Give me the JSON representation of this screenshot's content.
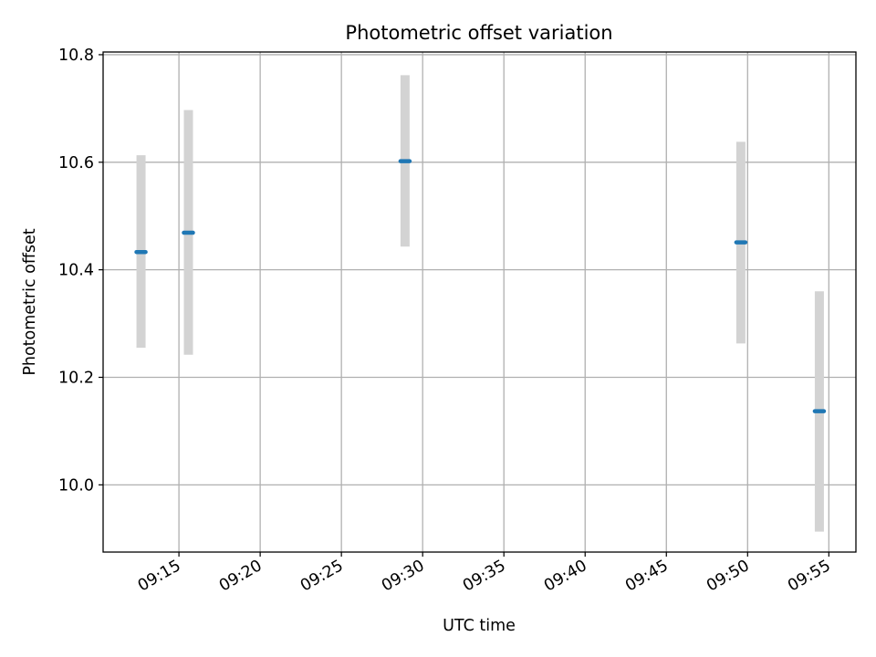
{
  "chart_data": {
    "type": "scatter",
    "title": "Photometric offset variation",
    "xlabel": "UTC time",
    "ylabel": "Photometric offset",
    "x_ticks": [
      "09:15",
      "09:20",
      "09:25",
      "09:30",
      "09:35",
      "09:40",
      "09:45",
      "09:50",
      "09:55"
    ],
    "y_ticks": [
      "10.0",
      "10.2",
      "10.4",
      "10.6",
      "10.8"
    ],
    "xlim": [
      "09:10:20",
      "09:56:40"
    ],
    "ylim": [
      9.875,
      10.805
    ],
    "grid": true,
    "colors": {
      "marker": "#1f77b4",
      "errorbar": "#d3d3d3",
      "grid": "#b0b0b0"
    },
    "points": [
      {
        "x": "09:12:40",
        "y": 10.433,
        "ylow": 10.255,
        "yhigh": 10.613
      },
      {
        "x": "09:15:35",
        "y": 10.469,
        "ylow": 10.242,
        "yhigh": 10.697
      },
      {
        "x": "09:28:55",
        "y": 10.602,
        "ylow": 10.443,
        "yhigh": 10.762
      },
      {
        "x": "09:49:35",
        "y": 10.451,
        "ylow": 10.263,
        "yhigh": 10.638
      },
      {
        "x": "09:54:25",
        "y": 10.137,
        "ylow": 9.913,
        "yhigh": 10.36
      }
    ]
  }
}
